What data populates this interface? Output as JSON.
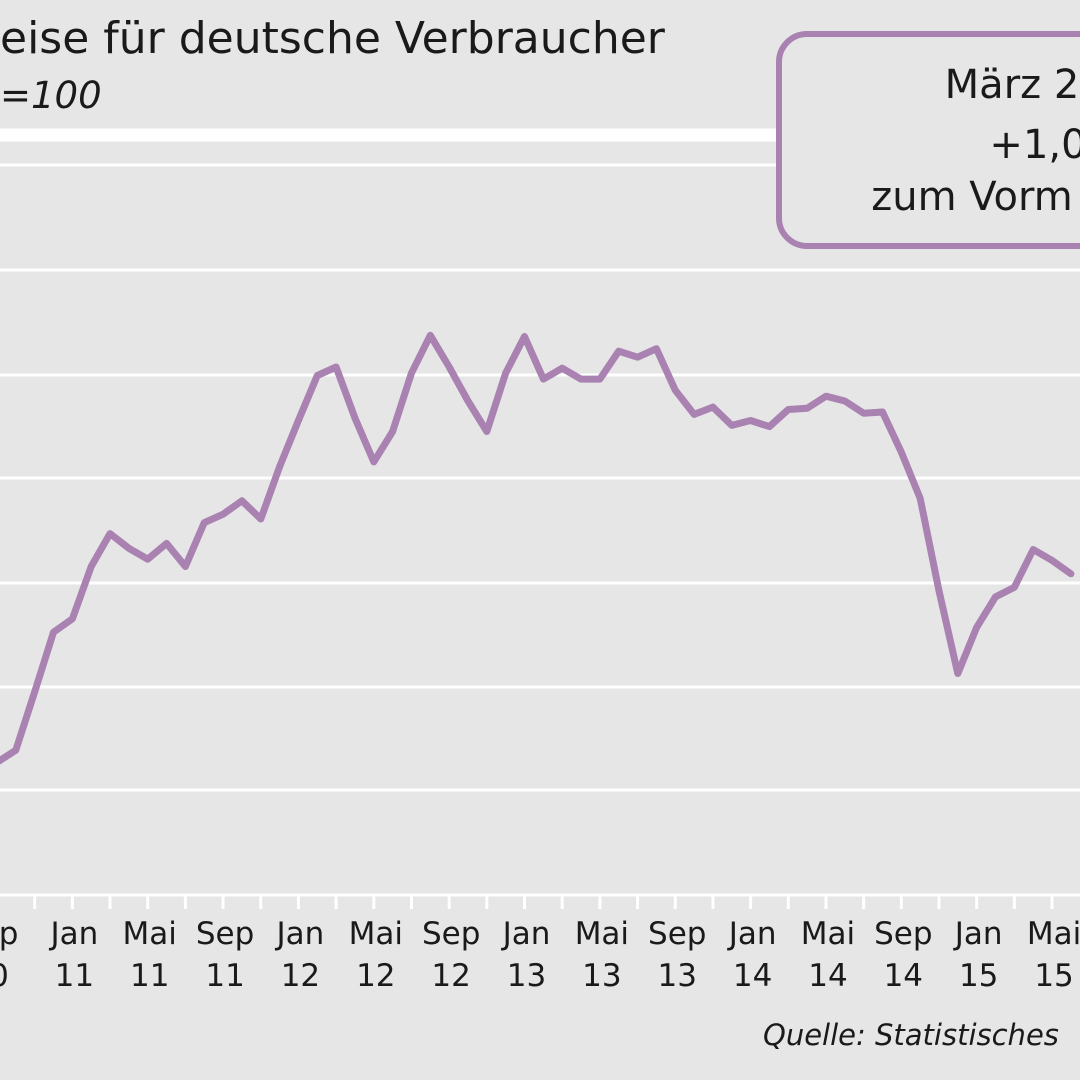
{
  "colors": {
    "background": "#e6e6e6",
    "line": "#a982b1",
    "grid": "#ffffff",
    "annotation_border": "#a982b1",
    "text": "#1a1a1a"
  },
  "chart_data": {
    "type": "line",
    "title": "eise für deutsche Verbraucher",
    "subtitle": "=100",
    "source": "Quelle: Statistisches",
    "annotation": [
      "März 2",
      "+1,0",
      "zum Vorm"
    ],
    "grid": true,
    "x_tick_labels": [
      [
        "ep",
        "0"
      ],
      [
        "Jan",
        "11"
      ],
      [
        "Mai",
        "11"
      ],
      [
        "Sep",
        "11"
      ],
      [
        "Jan",
        "12"
      ],
      [
        "Mai",
        "12"
      ],
      [
        "Sep",
        "12"
      ],
      [
        "Jan",
        "13"
      ],
      [
        "Mai",
        "13"
      ],
      [
        "Sep",
        "13"
      ],
      [
        "Jan",
        "14"
      ],
      [
        "Mai",
        "14"
      ],
      [
        "Sep",
        "14"
      ],
      [
        "Jan",
        "15"
      ],
      [
        "Mai",
        "15"
      ]
    ],
    "x": [
      "2010-09",
      "2010-10",
      "2010-11",
      "2010-12",
      "2011-01",
      "2011-02",
      "2011-03",
      "2011-04",
      "2011-05",
      "2011-06",
      "2011-07",
      "2011-08",
      "2011-09",
      "2011-10",
      "2011-11",
      "2011-12",
      "2012-01",
      "2012-02",
      "2012-03",
      "2012-04",
      "2012-05",
      "2012-06",
      "2012-07",
      "2012-08",
      "2012-09",
      "2012-10",
      "2012-11",
      "2012-12",
      "2013-01",
      "2013-02",
      "2013-03",
      "2013-04",
      "2013-05",
      "2013-06",
      "2013-07",
      "2013-08",
      "2013-09",
      "2013-10",
      "2013-11",
      "2013-12",
      "2014-01",
      "2014-02",
      "2014-03",
      "2014-04",
      "2014-05",
      "2014-06",
      "2014-07",
      "2014-08",
      "2014-09",
      "2014-10",
      "2014-11",
      "2014-12",
      "2015-01",
      "2015-02",
      "2015-03",
      "2015-04",
      "2015-05",
      "2015-06"
    ],
    "series": [
      {
        "values": [
          102.9,
          103.9,
          108.7,
          113.6,
          114.7,
          119.0,
          121.7,
          120.5,
          119.6,
          120.9,
          119.0,
          122.6,
          123.3,
          124.4,
          122.9,
          127.2,
          131.0,
          134.7,
          135.4,
          131.2,
          127.6,
          130.1,
          134.9,
          138.0,
          135.4,
          132.6,
          130.1,
          134.9,
          137.9,
          134.4,
          135.3,
          134.4,
          134.4,
          136.7,
          136.2,
          136.9,
          133.5,
          131.5,
          132.1,
          130.6,
          131.0,
          130.5,
          131.9,
          132.0,
          133.0,
          132.6,
          131.6,
          131.7,
          128.4,
          124.6,
          117.0,
          110.2,
          114.0,
          116.5,
          117.3,
          120.4,
          119.5,
          118.4
        ]
      }
    ],
    "ylim": [
      92,
      152
    ]
  }
}
